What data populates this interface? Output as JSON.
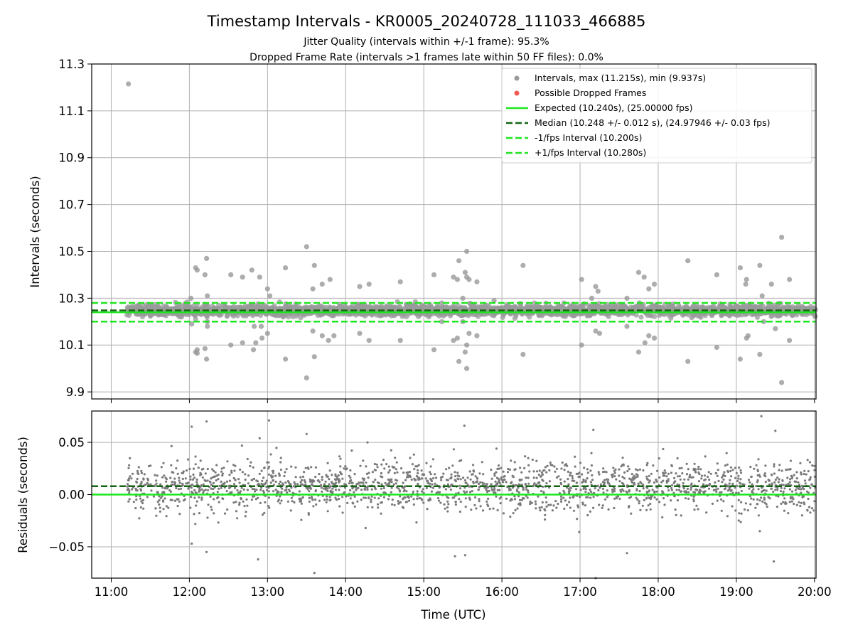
{
  "chart_data": [
    {
      "type": "scatter",
      "title": "Timestamp Intervals - KR0005_20240728_111033_466885",
      "subtitle_lines": [
        "Jitter Quality (intervals within +/-1 frame): 95.3%",
        "Dropped Frame Rate (intervals >1 frames late within 50 FF files): 0.0%"
      ],
      "ylabel": "Intervals (seconds)",
      "xlim_hours": [
        10.75,
        20.02
      ],
      "ylim": [
        9.87,
        11.3
      ],
      "yticks": [
        9.9,
        10.1,
        10.3,
        10.5,
        10.7,
        10.9,
        11.1,
        11.3
      ],
      "ytick_labels": [
        "9.9",
        "10.1",
        "10.3",
        "10.5",
        "10.7",
        "10.9",
        "11.1",
        "11.3"
      ],
      "grid": true,
      "legend_position": "top-right",
      "colors": {
        "intervals": "#999999",
        "dropped": "#f05a50",
        "expected": "#1ee61e",
        "median": "#146414",
        "fps_bounds": "#1ee61e"
      },
      "reference_lines": {
        "expected": 10.24,
        "median": 10.248,
        "minus_fps": 10.2,
        "plus_fps": 10.28
      },
      "series": [
        {
          "name": "Intervals, max (11.215s), min (9.937s)",
          "style": "scatter"
        },
        {
          "name": "Possible Dropped Frames",
          "style": "scatter"
        },
        {
          "name": "Expected (10.240s), (25.00000 fps)",
          "style": "solid"
        },
        {
          "name": "Median (10.248 +/- 0.012 s), (24.97946 +/- 0.03 fps)",
          "style": "dashed"
        },
        {
          "name": "-1/fps Interval (10.200s)",
          "style": "dashed"
        },
        {
          "name": "+1/fps Interval (10.280s)",
          "style": "dashed"
        }
      ],
      "outliers": [
        [
          11.22,
          11.215
        ],
        [
          11.5,
          10.27
        ],
        [
          11.9,
          10.22
        ],
        [
          12.02,
          10.3
        ],
        [
          12.03,
          10.19
        ],
        [
          12.08,
          10.43
        ],
        [
          12.08,
          10.07
        ],
        [
          12.1,
          10.42
        ],
        [
          12.1,
          10.08
        ],
        [
          12.1,
          10.065
        ],
        [
          12.2,
          10.4
        ],
        [
          12.2,
          10.085
        ],
        [
          12.22,
          10.47
        ],
        [
          12.22,
          10.04
        ],
        [
          12.23,
          10.31
        ],
        [
          12.23,
          10.2
        ],
        [
          12.23,
          10.18
        ],
        [
          12.53,
          10.4
        ],
        [
          12.53,
          10.1
        ],
        [
          12.68,
          10.39
        ],
        [
          12.68,
          10.11
        ],
        [
          12.8,
          10.42
        ],
        [
          12.82,
          10.08
        ],
        [
          12.83,
          10.18
        ],
        [
          12.85,
          10.11
        ],
        [
          12.9,
          10.39
        ],
        [
          12.92,
          10.18
        ],
        [
          12.93,
          10.13
        ],
        [
          13.0,
          10.34
        ],
        [
          13.0,
          10.15
        ],
        [
          13.03,
          10.31
        ],
        [
          13.2,
          10.22
        ],
        [
          13.23,
          10.43
        ],
        [
          13.23,
          10.04
        ],
        [
          13.5,
          10.52
        ],
        [
          13.5,
          9.96
        ],
        [
          13.6,
          10.44
        ],
        [
          13.58,
          10.34
        ],
        [
          13.58,
          10.16
        ],
        [
          13.6,
          10.05
        ],
        [
          13.7,
          10.36
        ],
        [
          13.7,
          10.14
        ],
        [
          13.8,
          10.38
        ],
        [
          13.78,
          10.12
        ],
        [
          13.85,
          10.14
        ],
        [
          14.18,
          10.35
        ],
        [
          14.18,
          10.15
        ],
        [
          14.3,
          10.36
        ],
        [
          14.3,
          10.12
        ],
        [
          14.7,
          10.37
        ],
        [
          14.7,
          10.12
        ],
        [
          15.13,
          10.4
        ],
        [
          15.13,
          10.08
        ],
        [
          15.23,
          10.28
        ],
        [
          15.23,
          10.2
        ],
        [
          15.38,
          10.39
        ],
        [
          15.38,
          10.12
        ],
        [
          15.43,
          10.38
        ],
        [
          15.43,
          10.13
        ],
        [
          15.45,
          10.46
        ],
        [
          15.45,
          10.03
        ],
        [
          15.5,
          10.3
        ],
        [
          15.5,
          10.2
        ],
        [
          15.53,
          10.41
        ],
        [
          15.53,
          10.07
        ],
        [
          15.55,
          10.5
        ],
        [
          15.55,
          10.0
        ],
        [
          15.55,
          10.39
        ],
        [
          15.55,
          10.1
        ],
        [
          15.58,
          10.38
        ],
        [
          15.58,
          10.15
        ],
        [
          15.68,
          10.37
        ],
        [
          15.68,
          10.14
        ],
        [
          15.9,
          10.29
        ],
        [
          16.27,
          10.44
        ],
        [
          16.27,
          10.06
        ],
        [
          17.02,
          10.38
        ],
        [
          17.02,
          10.1
        ],
        [
          17.15,
          10.3
        ],
        [
          17.2,
          10.35
        ],
        [
          17.2,
          10.16
        ],
        [
          17.23,
          10.33
        ],
        [
          17.25,
          10.15
        ],
        [
          17.6,
          10.3
        ],
        [
          17.6,
          10.18
        ],
        [
          17.75,
          10.41
        ],
        [
          17.75,
          10.07
        ],
        [
          17.82,
          10.39
        ],
        [
          17.83,
          10.11
        ],
        [
          17.88,
          10.34
        ],
        [
          17.88,
          10.14
        ],
        [
          17.95,
          10.36
        ],
        [
          17.95,
          10.13
        ],
        [
          18.38,
          10.46
        ],
        [
          18.38,
          10.03
        ],
        [
          18.75,
          10.4
        ],
        [
          18.75,
          10.09
        ],
        [
          19.05,
          10.43
        ],
        [
          19.05,
          10.04
        ],
        [
          19.12,
          10.36
        ],
        [
          19.13,
          10.13
        ],
        [
          19.13,
          10.38
        ],
        [
          19.15,
          10.14
        ],
        [
          19.3,
          10.44
        ],
        [
          19.3,
          10.06
        ],
        [
          19.33,
          10.31
        ],
        [
          19.35,
          10.2
        ],
        [
          19.45,
          10.36
        ],
        [
          19.5,
          10.17
        ],
        [
          19.58,
          10.56
        ],
        [
          19.58,
          9.94
        ],
        [
          19.68,
          10.38
        ],
        [
          19.68,
          10.12
        ]
      ]
    },
    {
      "type": "scatter",
      "xlabel": "Time (UTC)",
      "ylabel": "Residuals (seconds)",
      "xlim_hours": [
        10.75,
        20.02
      ],
      "ylim": [
        -0.08,
        0.08
      ],
      "yticks": [
        0.05,
        0.0,
        -0.05
      ],
      "ytick_labels": [
        "0.05",
        "0.00",
        "−0.05"
      ],
      "xticks": [
        "11:00",
        "12:00",
        "13:00",
        "14:00",
        "15:00",
        "16:00",
        "17:00",
        "18:00",
        "19:00",
        "20:00"
      ],
      "grid": true,
      "colors": {
        "residuals": "#7a7a7a",
        "zero_line": "#1ee61e",
        "median_line": "#146414"
      },
      "reference_lines": {
        "zero": 0.0,
        "median_offset": 0.008
      },
      "outliers": [
        [
          12.03,
          0.065
        ],
        [
          12.22,
          0.07
        ],
        [
          12.9,
          0.054
        ],
        [
          13.02,
          0.071
        ],
        [
          13.5,
          0.058
        ],
        [
          14.28,
          0.05
        ],
        [
          15.52,
          0.066
        ],
        [
          17.17,
          0.062
        ],
        [
          19.32,
          0.075
        ],
        [
          19.5,
          0.061
        ],
        [
          12.03,
          -0.047
        ],
        [
          12.22,
          -0.055
        ],
        [
          12.88,
          -0.062
        ],
        [
          13.6,
          -0.075
        ],
        [
          15.4,
          -0.059
        ],
        [
          15.53,
          -0.058
        ],
        [
          17.2,
          -0.08
        ],
        [
          17.6,
          -0.056
        ],
        [
          19.48,
          -0.064
        ],
        [
          19.3,
          -0.035
        ]
      ]
    }
  ]
}
